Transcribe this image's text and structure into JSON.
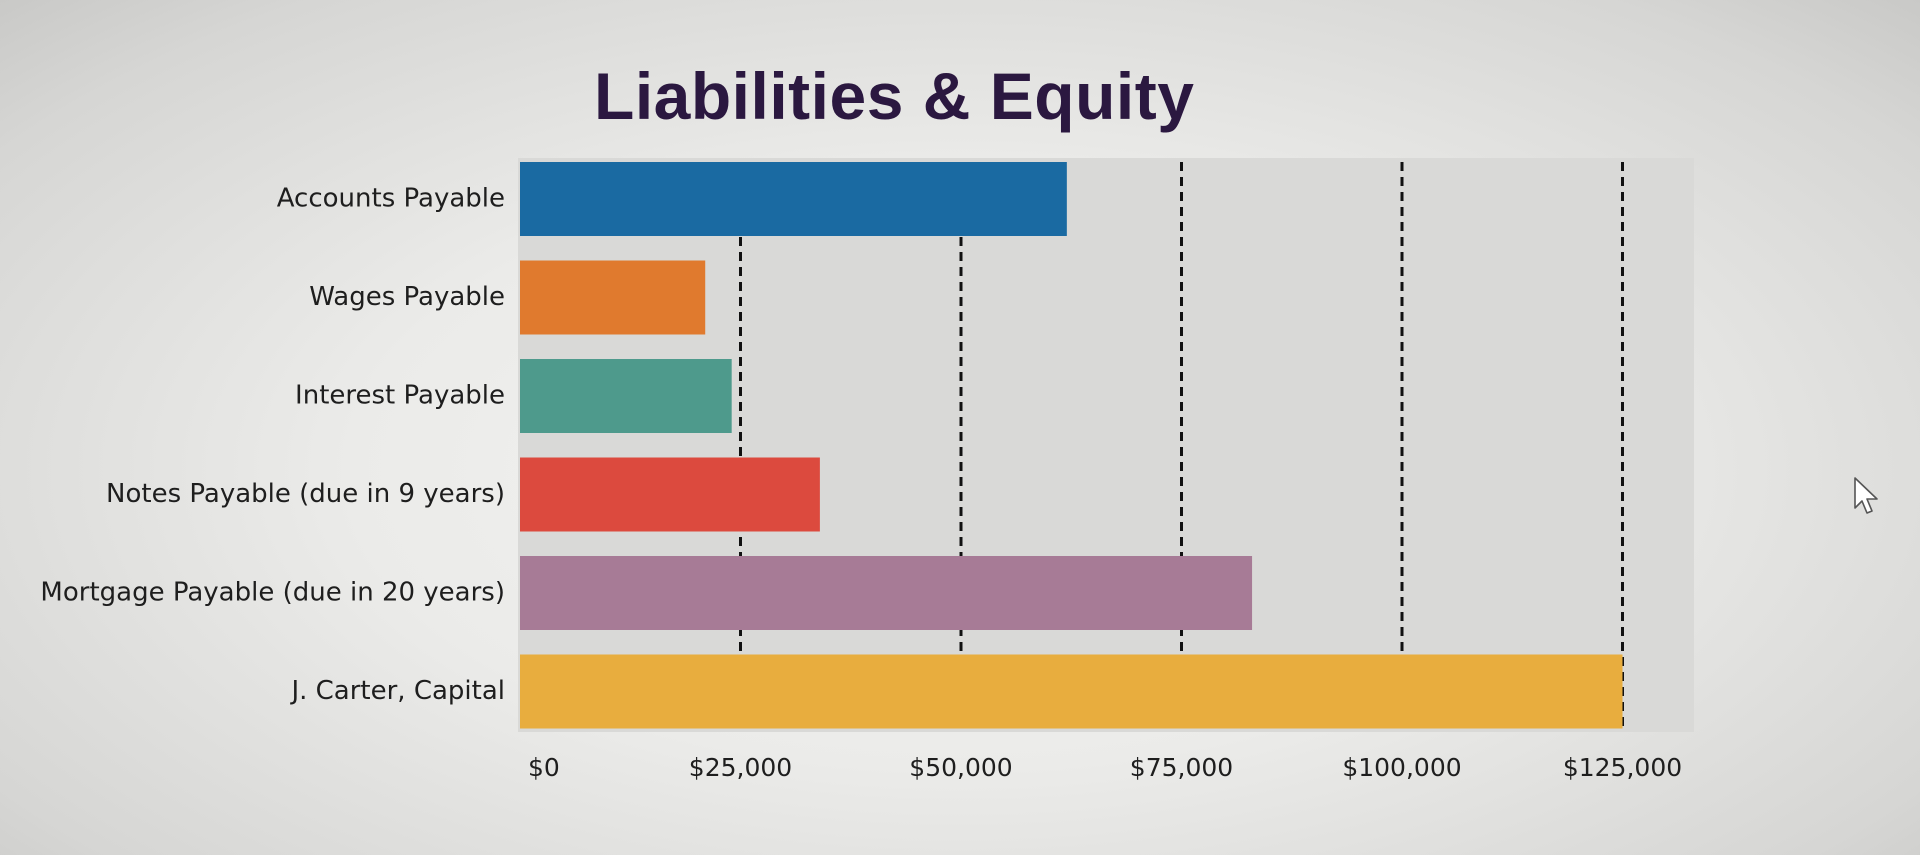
{
  "chart_data": {
    "type": "bar",
    "orientation": "horizontal",
    "title": "Liabilities & Equity",
    "xlabel": "",
    "ylabel": "",
    "categories": [
      "Accounts Payable",
      "Wages Payable",
      "Interest Payable",
      "Notes Payable (due in 9 years)",
      "Mortgage Payable (due in 20 years)",
      "J. Carter, Capital"
    ],
    "values": [
      62000,
      21000,
      24000,
      34000,
      83000,
      125000
    ],
    "colors": [
      "#1a6aa2",
      "#e07a2e",
      "#4e9a8c",
      "#dc4a3e",
      "#a77b96",
      "#e8ad3e"
    ],
    "xlim": [
      0,
      130000
    ],
    "x_ticks": [
      0,
      25000,
      50000,
      75000,
      100000,
      125000
    ],
    "x_tick_labels": [
      "$0",
      "$25,000",
      "$50,000",
      "$75,000",
      "$100,000",
      "$125,000"
    ],
    "grid": "vertical dashed",
    "legend": "none"
  }
}
